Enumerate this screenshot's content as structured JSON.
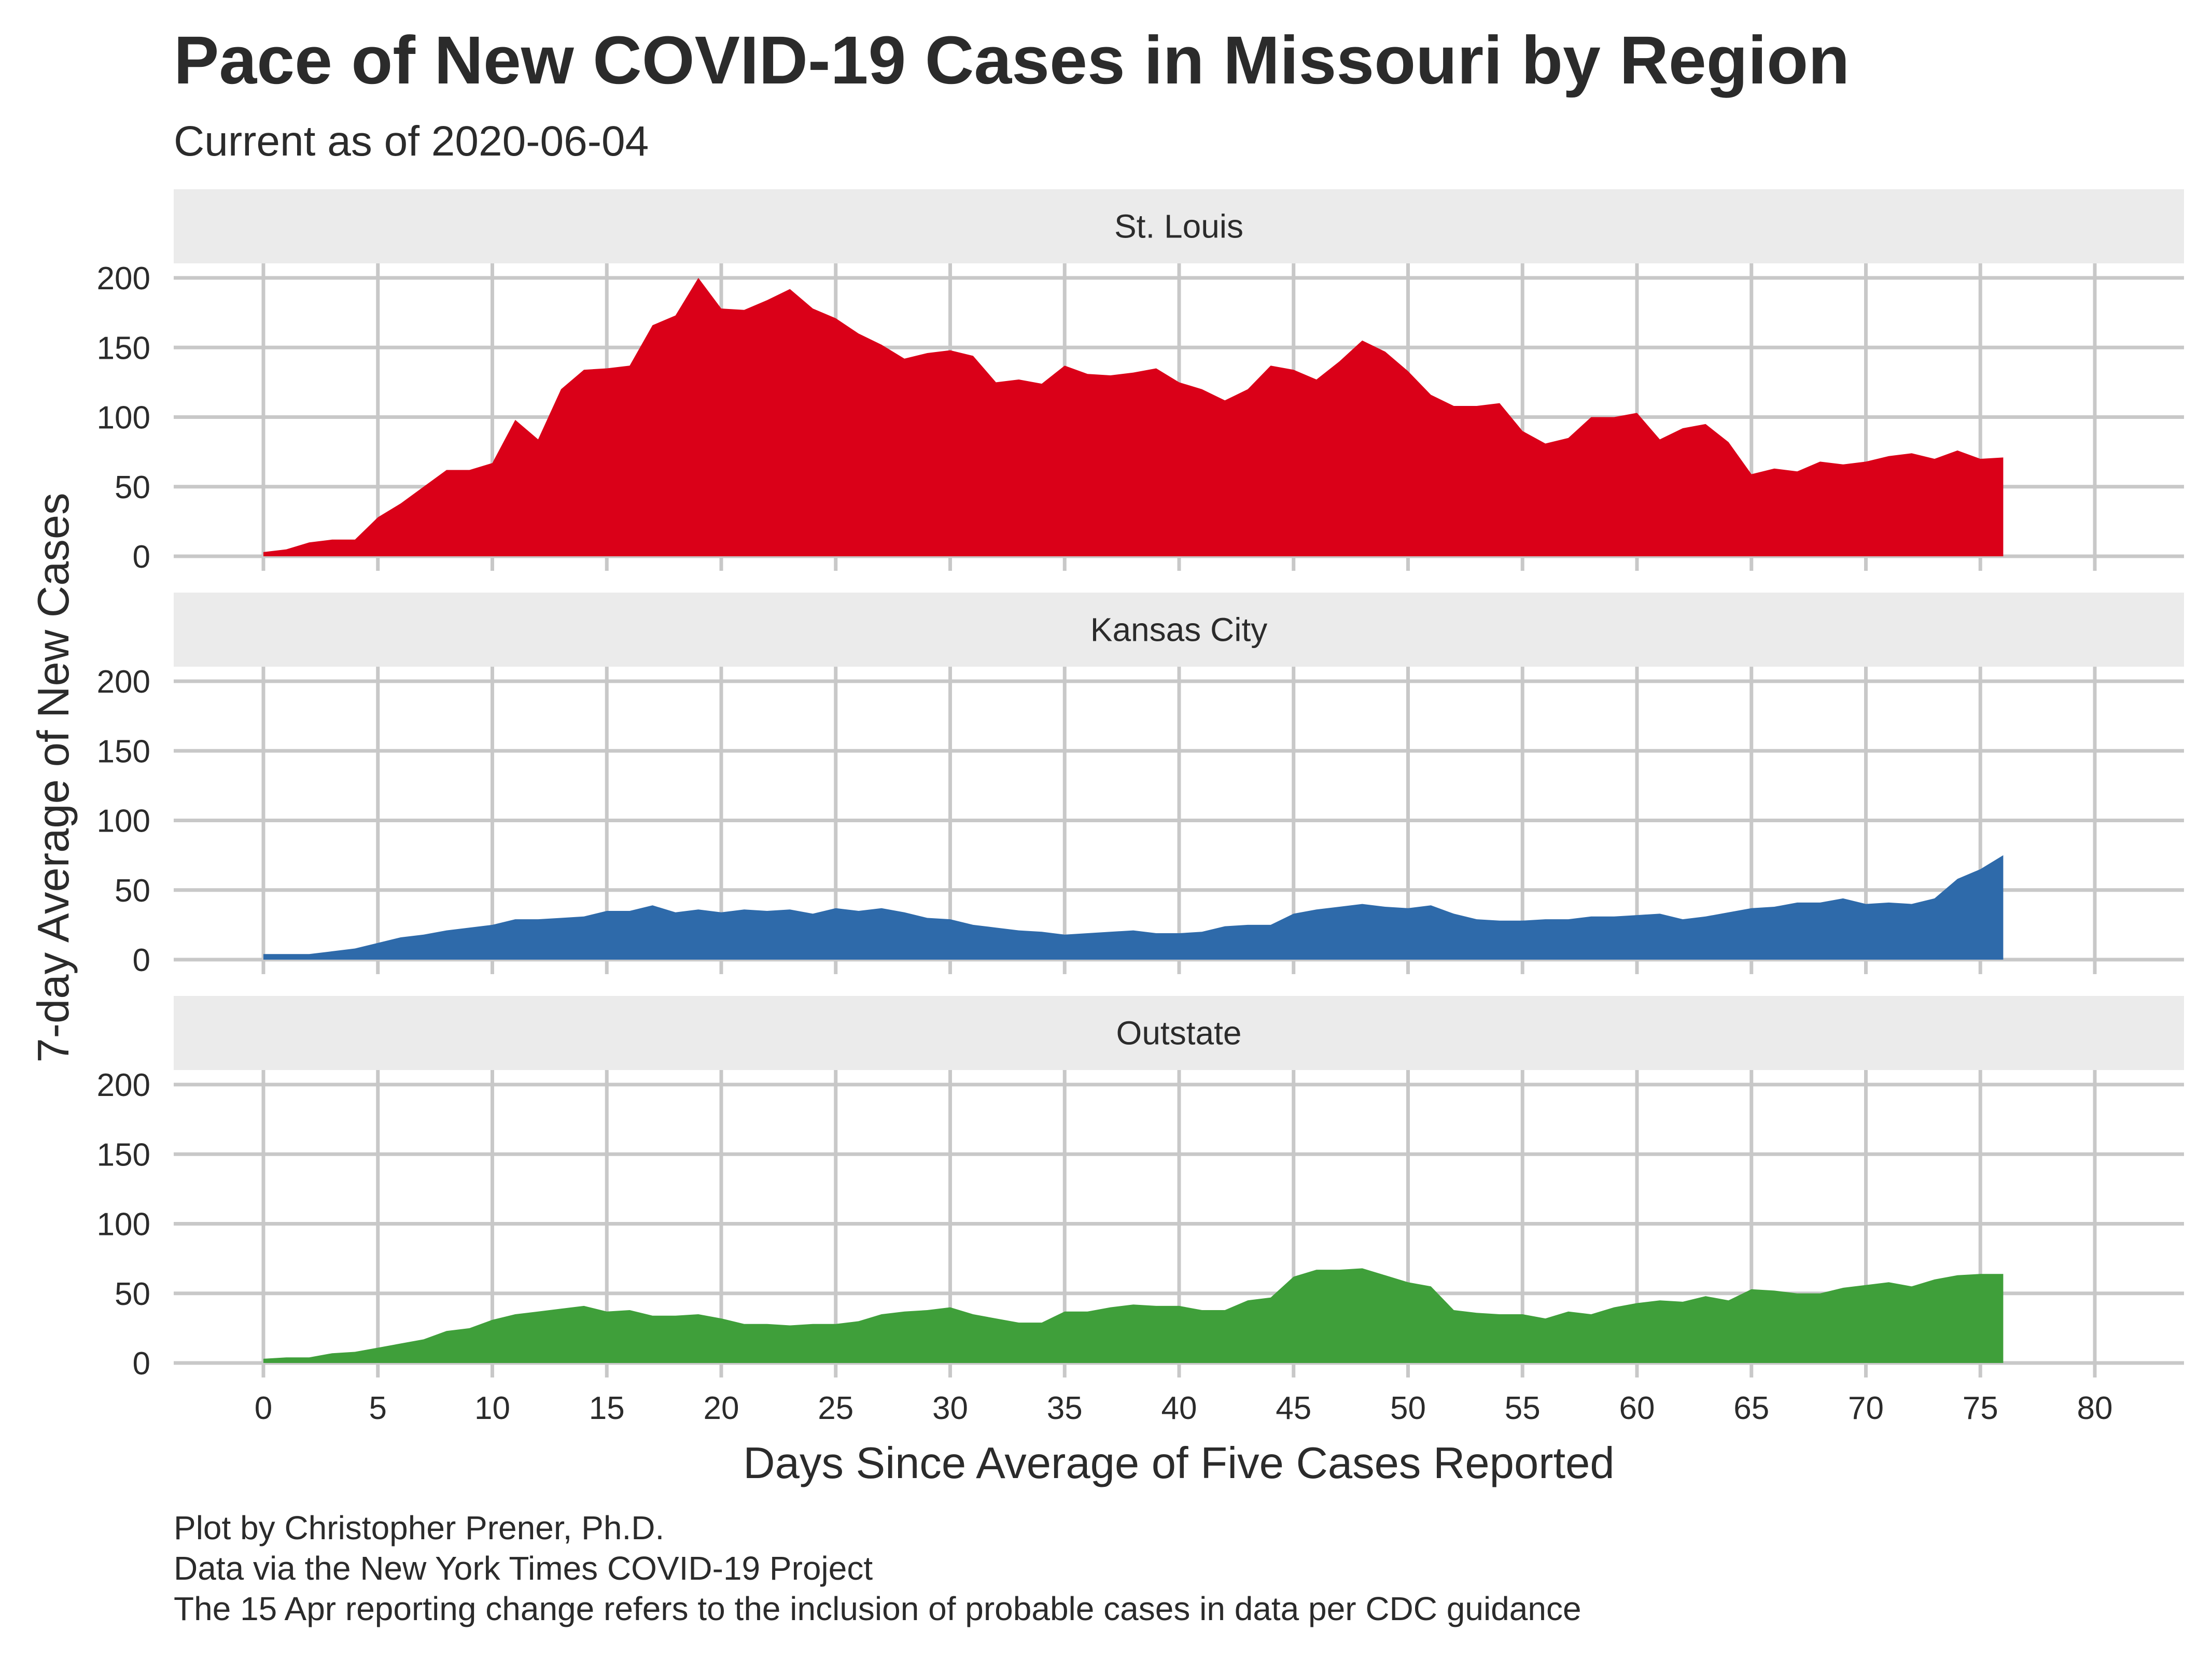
{
  "title": "Pace of New COVID-19 Cases in Missouri by Region",
  "subtitle": "Current as of 2020-06-04",
  "caption": [
    "Plot by Christopher Prener, Ph.D.",
    "Data via the New York Times COVID-19 Project",
    "The 15 Apr reporting change refers to the inclusion of probable cases in data per CDC guidance"
  ],
  "chart_data": {
    "type": "area",
    "title": "Pace of New COVID-19 Cases in Missouri by Region",
    "subtitle": "Current as of 2020-06-04",
    "xlabel": "Days Since Average of Five Cases Reported",
    "ylabel": "7-day Average of New Cases",
    "xlim": [
      0,
      80
    ],
    "ylim": [
      0,
      200
    ],
    "x_ticks": [
      0,
      5,
      10,
      15,
      20,
      25,
      30,
      35,
      40,
      45,
      50,
      55,
      60,
      65,
      70,
      75,
      80
    ],
    "y_ticks": [
      0,
      50,
      100,
      150,
      200
    ],
    "grid": true,
    "facets": [
      "St. Louis",
      "Kansas City",
      "Outstate"
    ],
    "series": [
      {
        "name": "St. Louis",
        "color": "#da0018",
        "x": [
          0,
          1,
          2,
          3,
          4,
          5,
          6,
          7,
          8,
          9,
          10,
          11,
          12,
          13,
          14,
          15,
          16,
          17,
          18,
          19,
          20,
          21,
          22,
          23,
          24,
          25,
          26,
          27,
          28,
          29,
          30,
          31,
          32,
          33,
          34,
          35,
          36,
          37,
          38,
          39,
          40,
          41,
          42,
          43,
          44,
          45,
          46,
          47,
          48,
          49,
          50,
          51,
          52,
          53,
          54,
          55,
          56,
          57,
          58,
          59,
          60,
          61,
          62,
          63,
          64,
          65,
          66,
          67,
          68,
          69,
          70,
          71,
          72,
          73,
          74,
          75,
          76
        ],
        "values": [
          3,
          5,
          10,
          12,
          12,
          28,
          38,
          50,
          62,
          62,
          67,
          98,
          84,
          120,
          134,
          135,
          137,
          166,
          173,
          200,
          178,
          177,
          184,
          192,
          178,
          171,
          160,
          152,
          142,
          146,
          148,
          144,
          125,
          127,
          124,
          137,
          131,
          130,
          132,
          135,
          125,
          120,
          112,
          120,
          137,
          134,
          127,
          140,
          155,
          147,
          133,
          116,
          108,
          108,
          110,
          90,
          81,
          85,
          100,
          100,
          103,
          84,
          92,
          95,
          82,
          59,
          63,
          61,
          68,
          66,
          68,
          72,
          74,
          70,
          76,
          70,
          71
        ]
      },
      {
        "name": "Kansas City",
        "color": "#2e6aaa",
        "x": [
          0,
          1,
          2,
          3,
          4,
          5,
          6,
          7,
          8,
          9,
          10,
          11,
          12,
          13,
          14,
          15,
          16,
          17,
          18,
          19,
          20,
          21,
          22,
          23,
          24,
          25,
          26,
          27,
          28,
          29,
          30,
          31,
          32,
          33,
          34,
          35,
          36,
          37,
          38,
          39,
          40,
          41,
          42,
          43,
          44,
          45,
          46,
          47,
          48,
          49,
          50,
          51,
          52,
          53,
          54,
          55,
          56,
          57,
          58,
          59,
          60,
          61,
          62,
          63,
          64,
          65,
          66,
          67,
          68,
          69,
          70,
          71,
          72,
          73,
          74,
          75,
          76
        ],
        "values": [
          4,
          4,
          4,
          6,
          8,
          12,
          16,
          18,
          21,
          23,
          25,
          29,
          29,
          30,
          31,
          35,
          35,
          39,
          34,
          36,
          34,
          36,
          35,
          36,
          33,
          37,
          35,
          37,
          34,
          30,
          29,
          25,
          23,
          21,
          20,
          18,
          19,
          20,
          21,
          19,
          19,
          20,
          24,
          25,
          25,
          33,
          36,
          38,
          40,
          38,
          37,
          39,
          33,
          29,
          28,
          28,
          29,
          29,
          31,
          31,
          32,
          33,
          29,
          31,
          34,
          37,
          38,
          41,
          41,
          44,
          40,
          41,
          40,
          44,
          58,
          65,
          75
        ]
      },
      {
        "name": "Outstate",
        "color": "#3f9f3a",
        "x": [
          0,
          1,
          2,
          3,
          4,
          5,
          6,
          7,
          8,
          9,
          10,
          11,
          12,
          13,
          14,
          15,
          16,
          17,
          18,
          19,
          20,
          21,
          22,
          23,
          24,
          25,
          26,
          27,
          28,
          29,
          30,
          31,
          32,
          33,
          34,
          35,
          36,
          37,
          38,
          39,
          40,
          41,
          42,
          43,
          44,
          45,
          46,
          47,
          48,
          49,
          50,
          51,
          52,
          53,
          54,
          55,
          56,
          57,
          58,
          59,
          60,
          61,
          62,
          63,
          64,
          65,
          66,
          67,
          68,
          69,
          70,
          71,
          72,
          73,
          74,
          75,
          76
        ],
        "values": [
          3,
          4,
          4,
          7,
          8,
          11,
          14,
          17,
          23,
          25,
          31,
          35,
          37,
          39,
          41,
          37,
          38,
          34,
          34,
          35,
          32,
          28,
          28,
          27,
          28,
          28,
          30,
          35,
          37,
          38,
          40,
          35,
          32,
          29,
          29,
          37,
          37,
          40,
          42,
          41,
          41,
          38,
          38,
          45,
          47,
          62,
          67,
          67,
          68,
          63,
          58,
          55,
          38,
          36,
          35,
          35,
          32,
          37,
          35,
          40,
          43,
          45,
          44,
          48,
          45,
          53,
          52,
          50,
          50,
          54,
          56,
          58,
          55,
          60,
          63,
          64,
          64
        ]
      }
    ]
  }
}
